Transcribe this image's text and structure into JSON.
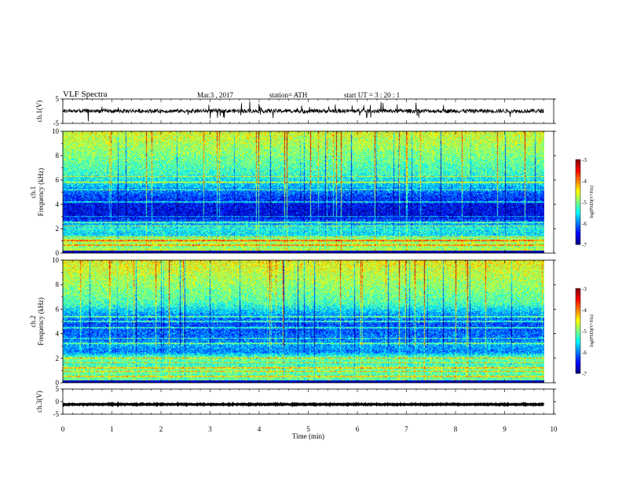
{
  "header": {
    "title": "VLF  Spectra",
    "date": "Mar.3  , 2017",
    "station": "station= ATH",
    "start": "start  UT  =   3  : 20 : 1"
  },
  "chart_data": [
    {
      "type": "line",
      "name": "ch1-waveform",
      "ylabel": "ch.1(V)",
      "ylim": [
        -5,
        5
      ],
      "yticks": [
        5,
        -5
      ],
      "x_range_min": [
        0,
        9.8
      ],
      "baseline_v": 0.1,
      "noise_v": 0.8
    },
    {
      "type": "heatmap",
      "name": "ch1-spectrogram",
      "ylabel": "ch.1\nFrequency  (kHz)",
      "ylim": [
        0,
        10
      ],
      "yticks": [
        0,
        2,
        4,
        6,
        8,
        10
      ],
      "x_range_min": [
        0,
        9.8
      ],
      "colorbar": {
        "label": "log(PSD)(V²/Hz)",
        "range": [
          -7,
          -3
        ],
        "ticks": [
          -3,
          -4,
          -5,
          -6,
          -7
        ]
      },
      "profile_khz_logpsd": [
        [
          0,
          -4.5
        ],
        [
          0.5,
          -5.0
        ],
        [
          1,
          -4.7
        ],
        [
          1.5,
          -5.6
        ],
        [
          2,
          -5.4
        ],
        [
          2.5,
          -6.0
        ],
        [
          3,
          -6.6
        ],
        [
          4,
          -6.5
        ],
        [
          4.8,
          -6.2
        ],
        [
          5.5,
          -5.7
        ],
        [
          6.5,
          -5.3
        ],
        [
          8,
          -5.0
        ],
        [
          9,
          -4.8
        ],
        [
          10,
          -4.6
        ]
      ],
      "lines_khz": [
        0.6,
        1.0,
        1.3,
        2.2,
        2.5,
        3.0,
        4.2,
        5.2,
        5.8,
        6.3
      ]
    },
    {
      "type": "heatmap",
      "name": "ch2-spectrogram",
      "ylabel": "ch.2\nFrequency  (kHz)",
      "ylim": [
        0,
        10
      ],
      "yticks": [
        0,
        2,
        4,
        6,
        8,
        10
      ],
      "x_range_min": [
        0,
        9.8
      ],
      "colorbar": {
        "label": "log(PSD)(V²/Hz)",
        "range": [
          -7,
          -3
        ],
        "ticks": [
          -3,
          -4,
          -5,
          -6,
          -7
        ]
      },
      "profile_khz_logpsd": [
        [
          0,
          -5.0
        ],
        [
          0.5,
          -5.2
        ],
        [
          1,
          -5.0
        ],
        [
          1.5,
          -5.3
        ],
        [
          2,
          -5.0
        ],
        [
          2.5,
          -6.0
        ],
        [
          3,
          -5.8
        ],
        [
          3.5,
          -6.0
        ],
        [
          4,
          -6.1
        ],
        [
          4.8,
          -6.2
        ],
        [
          5.5,
          -5.9
        ],
        [
          6.5,
          -5.2
        ],
        [
          8,
          -4.9
        ],
        [
          9,
          -4.7
        ],
        [
          10,
          -4.5
        ]
      ],
      "lines_khz": [
        0.5,
        0.9,
        1.2,
        1.6,
        2.0,
        3.2,
        3.6,
        4.5,
        5.0,
        5.4
      ]
    },
    {
      "type": "line",
      "name": "ch3-waveform",
      "ylabel": "ch.3(V)",
      "ylim": [
        -5,
        5
      ],
      "yticks": [
        5,
        0,
        -5
      ],
      "x_range_min": [
        0,
        9.8
      ],
      "baseline_v": -1.1,
      "noise_v": 0.15
    }
  ],
  "x_axis": {
    "label": "Time  (min)",
    "ticks": [
      0,
      1,
      2,
      3,
      4,
      5,
      6,
      7,
      8,
      9,
      10
    ]
  }
}
